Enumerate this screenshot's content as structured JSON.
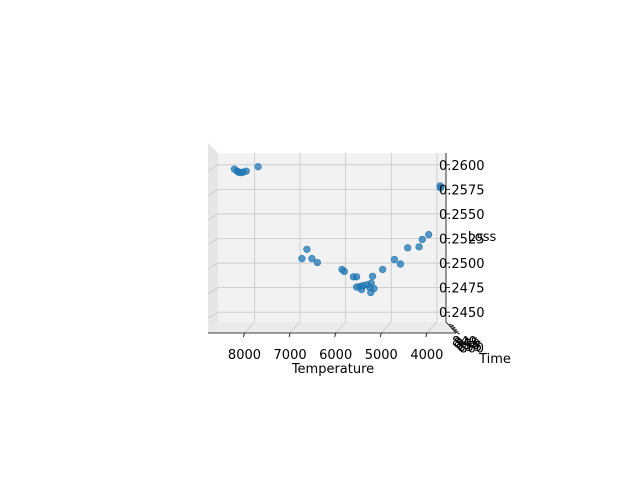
{
  "chart_data": {
    "type": "scatter",
    "projection": "3d",
    "xlabel": "Temperature",
    "ylabel": "Time",
    "zlabel": "Loss",
    "xlim": [
      3800,
      8800
    ],
    "zlim": [
      0.244,
      0.2612
    ],
    "x_ticks": [
      "8000",
      "7000",
      "6000",
      "5000",
      "4000"
    ],
    "z_ticks": [
      "0.2600",
      "0.2575",
      "0.2550",
      "0.2525",
      "0.2500",
      "0.2475",
      "0.2450"
    ],
    "y_ticks": [
      "840",
      "845",
      "850",
      "855",
      "860"
    ],
    "grid": true,
    "marker_color": "#1f77b4",
    "points": [
      {
        "x": 8440,
        "z": 0.25955
      },
      {
        "x": 8380,
        "z": 0.25935
      },
      {
        "x": 8350,
        "z": 0.25925
      },
      {
        "x": 8300,
        "z": 0.2592
      },
      {
        "x": 8250,
        "z": 0.25925
      },
      {
        "x": 8180,
        "z": 0.25935
      },
      {
        "x": 7920,
        "z": 0.2598
      },
      {
        "x": 3930,
        "z": 0.25785
      },
      {
        "x": 3920,
        "z": 0.25765
      },
      {
        "x": 4180,
        "z": 0.2529
      },
      {
        "x": 4320,
        "z": 0.2524
      },
      {
        "x": 4390,
        "z": 0.25165
      },
      {
        "x": 4640,
        "z": 0.25155
      },
      {
        "x": 4930,
        "z": 0.25035
      },
      {
        "x": 4800,
        "z": 0.2499
      },
      {
        "x": 5190,
        "z": 0.24935
      },
      {
        "x": 6850,
        "z": 0.2514
      },
      {
        "x": 6960,
        "z": 0.25045
      },
      {
        "x": 6740,
        "z": 0.25045
      },
      {
        "x": 6620,
        "z": 0.25005
      },
      {
        "x": 6080,
        "z": 0.24935
      },
      {
        "x": 6030,
        "z": 0.24915
      },
      {
        "x": 5830,
        "z": 0.2486
      },
      {
        "x": 5760,
        "z": 0.2486
      },
      {
        "x": 5410,
        "z": 0.24865
      },
      {
        "x": 5440,
        "z": 0.24795
      },
      {
        "x": 5530,
        "z": 0.2478
      },
      {
        "x": 5620,
        "z": 0.2477
      },
      {
        "x": 5690,
        "z": 0.2476
      },
      {
        "x": 5760,
        "z": 0.24755
      },
      {
        "x": 5470,
        "z": 0.2475
      },
      {
        "x": 5380,
        "z": 0.2474
      },
      {
        "x": 5650,
        "z": 0.2473
      },
      {
        "x": 5450,
        "z": 0.247
      }
    ]
  }
}
